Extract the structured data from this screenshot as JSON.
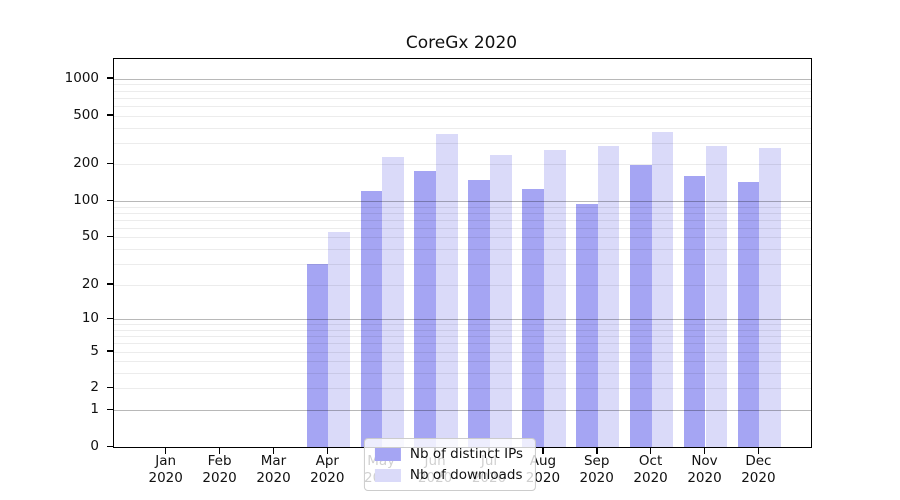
{
  "chart_data": {
    "type": "bar",
    "title": "CoreGx 2020",
    "categories": [
      "Jan 2020",
      "Feb 2020",
      "Mar 2020",
      "Apr 2020",
      "May 2020",
      "Jun 2020",
      "Jul 2020",
      "Aug 2020",
      "Sep 2020",
      "Oct 2020",
      "Nov 2020",
      "Dec 2020"
    ],
    "series": [
      {
        "name": "Nb of distinct IPs",
        "color": "#a5a5f3",
        "values": [
          0,
          0,
          0,
          30,
          122,
          175,
          150,
          126,
          95,
          198,
          160,
          143
        ]
      },
      {
        "name": "Nb of downloads",
        "color": "#dadaf9",
        "values": [
          0,
          0,
          0,
          56,
          232,
          355,
          240,
          260,
          281,
          366,
          281,
          270
        ]
      }
    ],
    "xlabel": "",
    "ylabel": "",
    "yscale": "log1p",
    "ylim": [
      0,
      1450
    ],
    "yticks": [
      0,
      1,
      2,
      5,
      10,
      20,
      50,
      100,
      200,
      500,
      1000
    ],
    "grid": "horizontal, minor log lines light, decade lines (1,10,100,1000) darker",
    "legend_position": "lower center"
  }
}
